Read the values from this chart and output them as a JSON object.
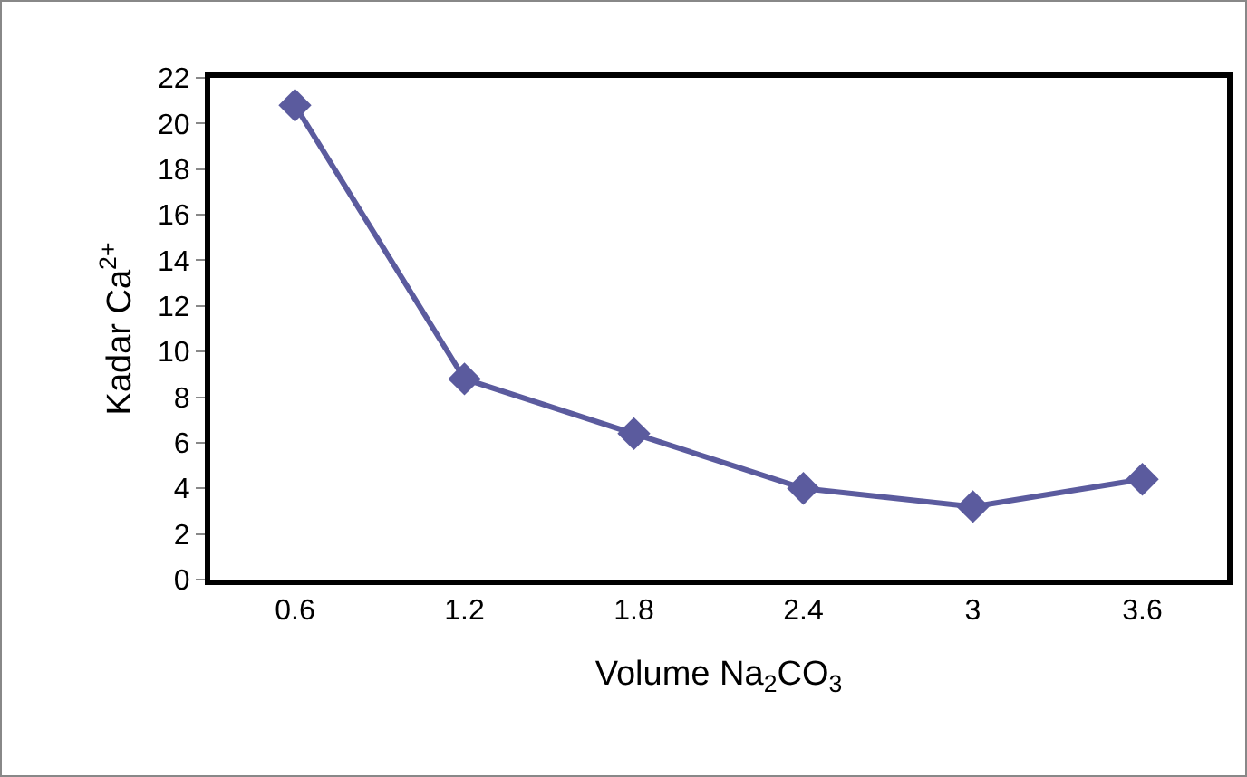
{
  "chart_data": {
    "type": "line",
    "xlabel": "Volume Na$_{2}$CO$_{3}$",
    "ylabel": "Kadar Ca$^{2+}$",
    "categories": [
      "0.6",
      "1.2",
      "1.8",
      "2.4",
      "3",
      "3.6"
    ],
    "series": [
      {
        "color": "#5b5b9e",
        "values": [
          20.8,
          8.8,
          6.4,
          4.0,
          3.2,
          4.4
        ]
      }
    ],
    "ylim": [
      0,
      22
    ],
    "yticks": [
      0,
      2,
      4,
      6,
      8,
      10,
      12,
      14,
      16,
      18,
      20,
      22
    ],
    "grid": false,
    "marker": "diamond",
    "line_style": "solid"
  }
}
